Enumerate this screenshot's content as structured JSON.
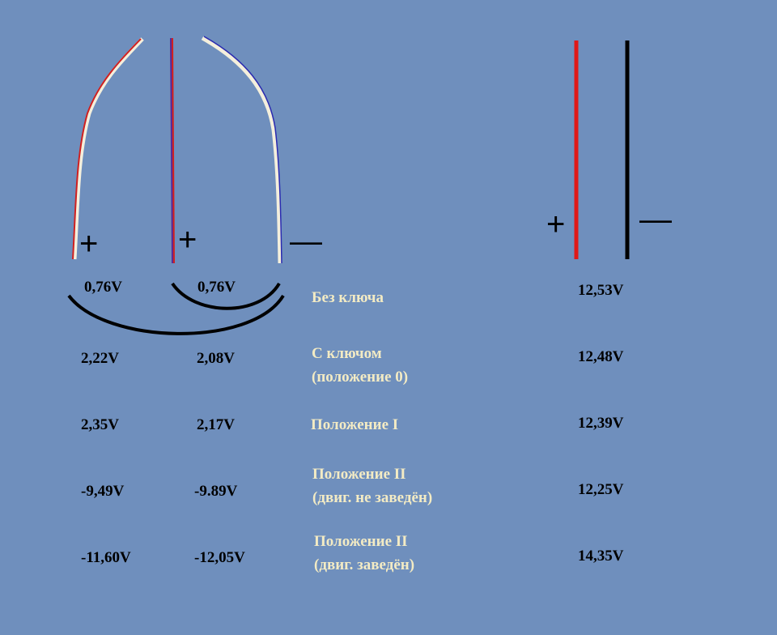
{
  "left_symbols": [
    "+",
    "+",
    "—"
  ],
  "right_symbols": [
    "+",
    "—"
  ],
  "rows": [
    {
      "left": "0,76V",
      "middle": "0,76V",
      "label": [
        "Без ключа"
      ],
      "right": "12,53V"
    },
    {
      "left": "2,22V",
      "middle": "2,08V",
      "label": [
        "С ключом",
        "(положение 0)"
      ],
      "right": "12,48V"
    },
    {
      "left": "2,35V",
      "middle": "2,17V",
      "label": [
        "Положение I"
      ],
      "right": "12,39V"
    },
    {
      "left": "-9,49V",
      "middle": "-9.89V",
      "label": [
        "Положение II",
        "(двиг. не заведён)"
      ],
      "right": "12,25V"
    },
    {
      "left": "-11,60V",
      "middle": "-12,05V",
      "label": [
        "Положение II",
        "(двиг. заведён)"
      ],
      "right": "14,35V"
    }
  ]
}
